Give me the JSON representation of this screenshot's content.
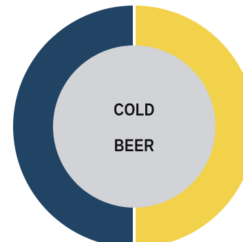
{
  "badge": {
    "line1": "COLD",
    "line2": "BEER"
  },
  "colors": {
    "left_half": "#214464",
    "right_half": "#f1d24a",
    "center": "#d1d3d6",
    "divider": "#ffffff",
    "text": "#111111"
  }
}
